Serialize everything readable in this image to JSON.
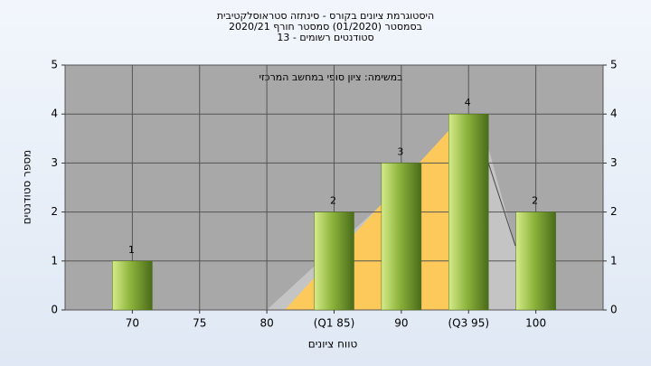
{
  "chart_data": {
    "type": "bar",
    "title": [
      "היסטוגרמת ציונים בקורס - סינתזה סטראוסלקטיבית",
      "בסמסטר  (01/2020)  סמסטר חורף  2020/21",
      "סטודנטים רשומים - 13"
    ],
    "annotation": "במשימה: ציון סופי במחשב המרכזי",
    "x_label": "טווח ציונים",
    "y_label": "מספר סטודנטים",
    "categories": [
      "70",
      "75",
      "80",
      "(Q1 85)",
      "90",
      "(Q3 95)",
      "100"
    ],
    "values": [
      1,
      0,
      0,
      2,
      3,
      4,
      2
    ],
    "color": "#8db43c",
    "ylim": [
      0,
      5
    ],
    "yticks": [
      0,
      1,
      2,
      3,
      4,
      5
    ],
    "grid": true
  }
}
